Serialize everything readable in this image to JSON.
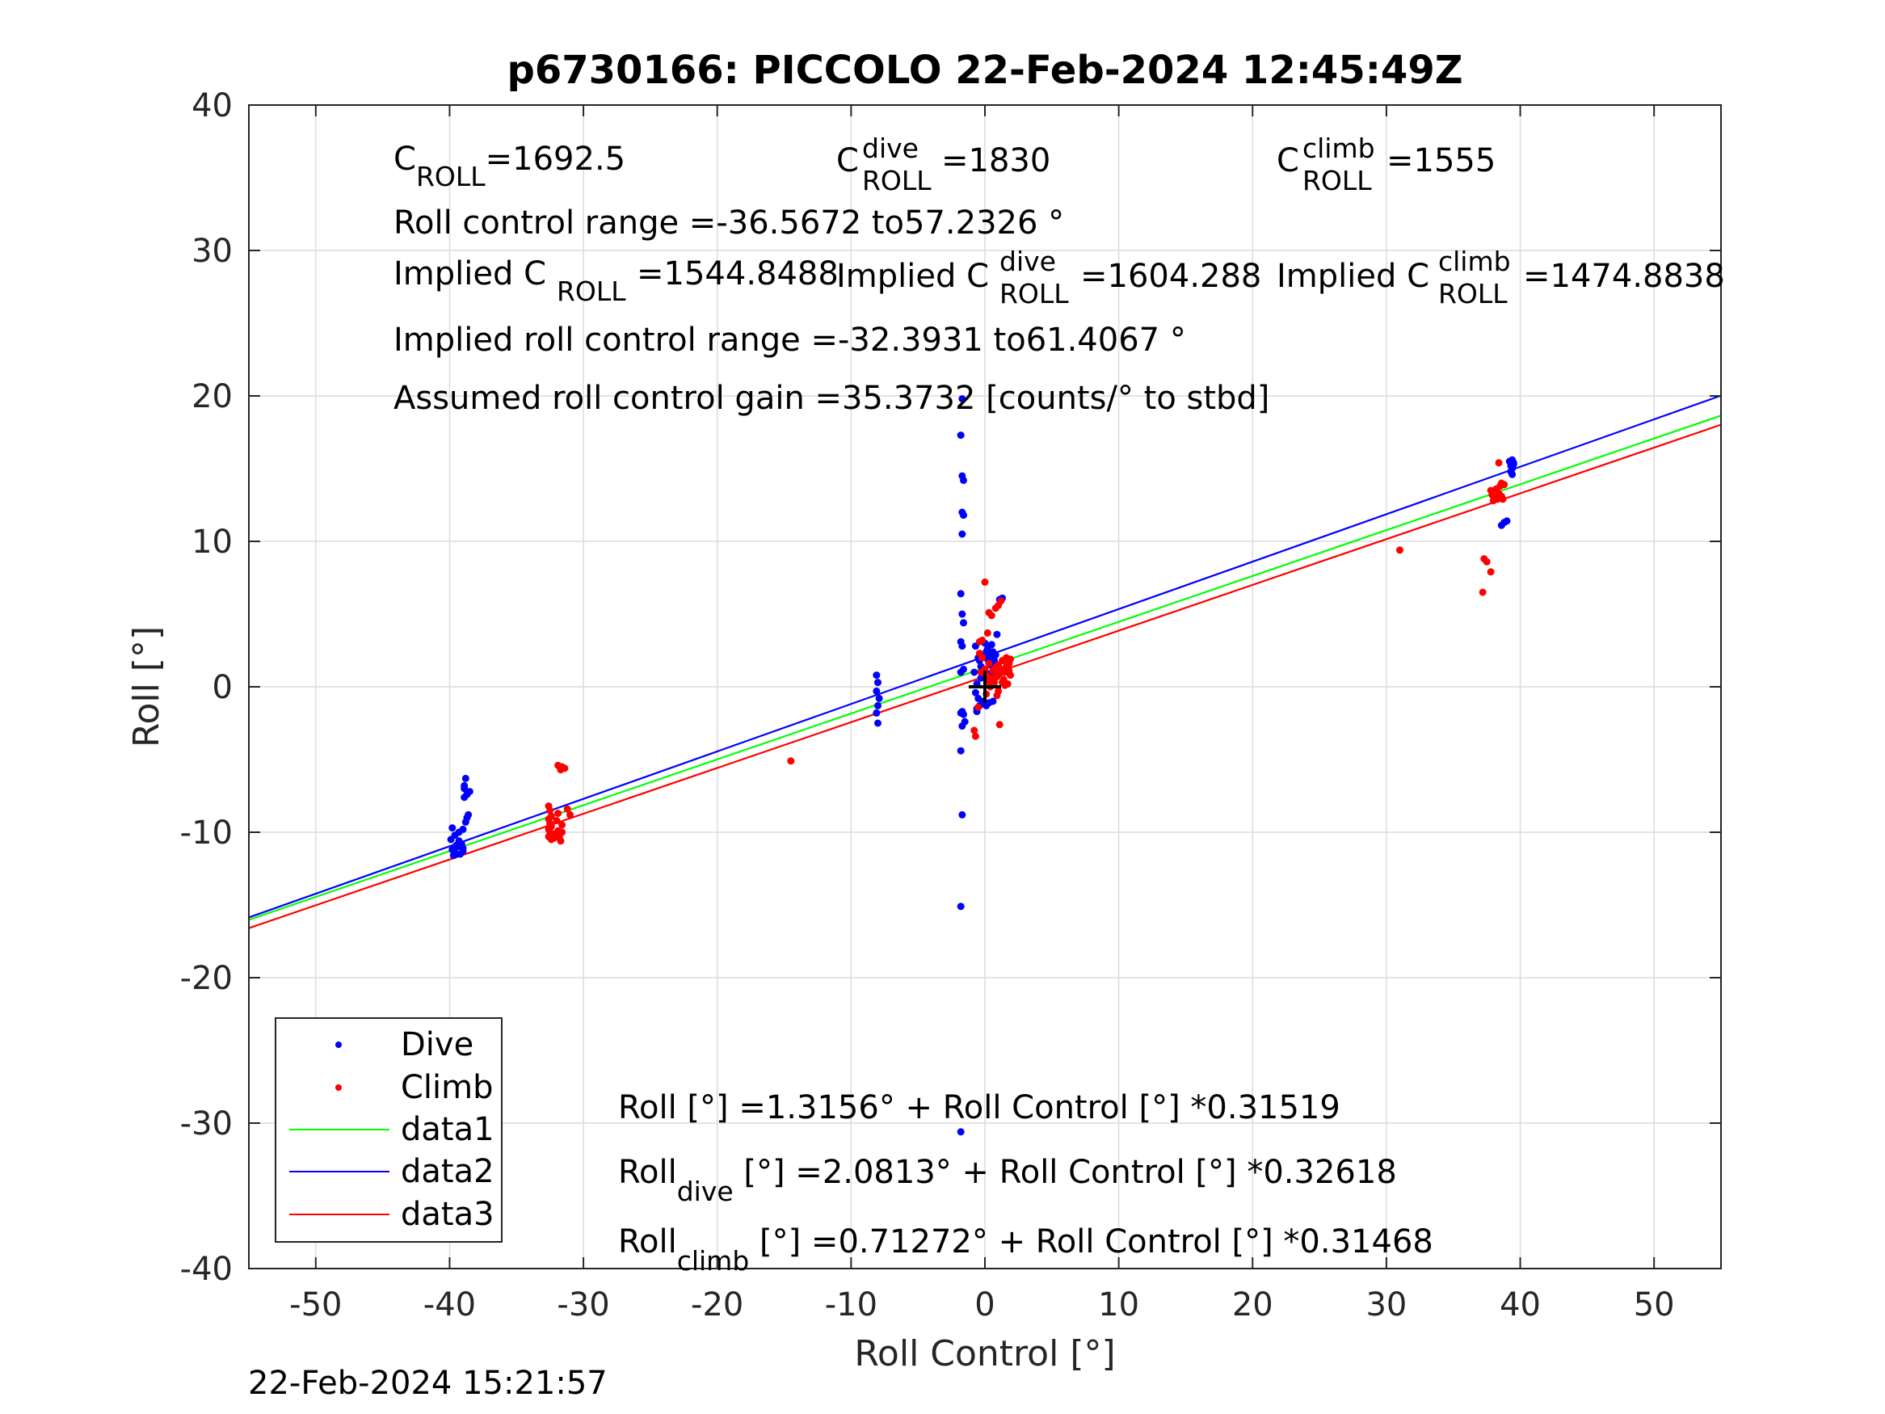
{
  "chart_data": {
    "type": "scatter",
    "title": "p6730166: PICCOLO 22-Feb-2024 12:45:49Z",
    "xlabel": "Roll Control [°]",
    "ylabel": "Roll [°]",
    "xlim": [
      -55,
      55
    ],
    "ylim": [
      -40,
      40
    ],
    "xticks": [
      -50,
      -40,
      -30,
      -20,
      -10,
      0,
      10,
      20,
      30,
      40,
      50
    ],
    "yticks": [
      -40,
      -30,
      -20,
      -10,
      0,
      10,
      20,
      30,
      40
    ],
    "grid": true,
    "legend_position": "bottom-left",
    "timestamp": "22-Feb-2024 15:21:57",
    "annotations": {
      "c_roll": {
        "base": "C",
        "sub": "ROLL",
        "value": "=1692.5"
      },
      "c_roll_dive": {
        "base": "C",
        "sup": "dive",
        "sub": "ROLL",
        "value": "=1830"
      },
      "c_roll_climb": {
        "base": "C",
        "sup": "climb",
        "sub": "ROLL",
        "value": "=1555"
      },
      "roll_control_range": "Roll control range =-36.5672 to57.2326 °",
      "implied_c_roll": {
        "prefix": "Implied C",
        "sub": "ROLL",
        "value": "=1544.8488"
      },
      "implied_c_roll_dive": {
        "prefix": "Implied C",
        "sup": "dive",
        "sub": "ROLL",
        "value": "=1604.288"
      },
      "implied_c_roll_climb": {
        "prefix": "Implied C",
        "sup": "climb",
        "sub": "ROLL",
        "value": "=1474.8838"
      },
      "implied_range": "Implied roll control range =-32.3931 to61.4067 °",
      "gain": "Assumed roll control gain =35.3732 [counts/° to stbd]",
      "fit_all": "Roll [°] =1.3156° + Roll Control [°] *0.31519",
      "fit_dive": {
        "prefix": "Roll",
        "sub": "dive",
        "value": " [°] =2.0813° + Roll Control [°] *0.32618"
      },
      "fit_climb": {
        "prefix": "Roll",
        "sub": "climb",
        "value": " [°] =0.71272° + Roll Control [°] *0.31468"
      }
    },
    "series": [
      {
        "name": "Dive",
        "kind": "points",
        "color": "#0000ff",
        "points": [
          [
            -39.8,
            -11.2
          ],
          [
            -39.6,
            -11.4
          ],
          [
            -39.5,
            -10.9
          ],
          [
            -39.4,
            -11.0
          ],
          [
            -39.3,
            -10.6
          ],
          [
            -39.6,
            -10.2
          ],
          [
            -39.8,
            -9.7
          ],
          [
            -39.2,
            -11.5
          ],
          [
            -39.0,
            -11.3
          ],
          [
            -39.3,
            -10.0
          ],
          [
            -39.7,
            -11.6
          ],
          [
            -39.1,
            -10.8
          ],
          [
            -39.5,
            -11.5
          ],
          [
            -39.0,
            -11.1
          ],
          [
            -39.9,
            -10.5
          ],
          [
            -38.8,
            -6.3
          ],
          [
            -38.9,
            -7.0
          ],
          [
            -38.7,
            -7.4
          ],
          [
            -38.9,
            -7.6
          ],
          [
            -38.6,
            -8.8
          ],
          [
            -38.8,
            -9.3
          ],
          [
            -38.5,
            -7.2
          ],
          [
            -39.0,
            -9.8
          ],
          [
            -38.9,
            -6.8
          ],
          [
            -38.7,
            -9.0
          ],
          [
            -8.1,
            0.8
          ],
          [
            -8.0,
            0.3
          ],
          [
            -8.1,
            -0.3
          ],
          [
            -7.9,
            -0.8
          ],
          [
            -8.0,
            -1.3
          ],
          [
            -8.1,
            -1.8
          ],
          [
            -8.0,
            -2.5
          ],
          [
            -1.7,
            19.8
          ],
          [
            -1.8,
            17.3
          ],
          [
            -1.7,
            14.5
          ],
          [
            -1.6,
            14.2
          ],
          [
            -1.7,
            12.0
          ],
          [
            -1.6,
            11.8
          ],
          [
            -1.7,
            10.5
          ],
          [
            -1.8,
            6.4
          ],
          [
            -1.7,
            5.0
          ],
          [
            -1.6,
            4.4
          ],
          [
            -1.8,
            3.1
          ],
          [
            -1.7,
            2.8
          ],
          [
            -1.6,
            1.2
          ],
          [
            -1.8,
            1.0
          ],
          [
            -1.7,
            -1.7
          ],
          [
            -1.6,
            -1.9
          ],
          [
            -1.8,
            -1.8
          ],
          [
            -1.5,
            -2.4
          ],
          [
            -1.7,
            -2.7
          ],
          [
            -1.8,
            -4.4
          ],
          [
            -1.7,
            -8.8
          ],
          [
            -1.8,
            -15.1
          ],
          [
            -1.8,
            -30.6
          ],
          [
            -0.8,
            1.0
          ],
          [
            -0.6,
            -1.5
          ],
          [
            -0.7,
            -0.4
          ],
          [
            -0.5,
            2.0
          ],
          [
            -0.4,
            -1.3
          ],
          [
            -0.6,
            0.2
          ],
          [
            -0.3,
            1.4
          ],
          [
            -0.5,
            -0.8
          ],
          [
            -0.7,
            2.8
          ],
          [
            -0.2,
            -1.0
          ],
          [
            -0.4,
            1.8
          ],
          [
            -0.3,
            0.6
          ],
          [
            -0.6,
            -1.7
          ],
          [
            0.0,
            2.1
          ],
          [
            0.1,
            2.4
          ],
          [
            0.2,
            1.9
          ],
          [
            0.3,
            2.2
          ],
          [
            0.2,
            2.6
          ],
          [
            0.4,
            1.5
          ],
          [
            0.5,
            2.0
          ],
          [
            0.6,
            2.4
          ],
          [
            0.7,
            1.8
          ],
          [
            0.3,
            -1.1
          ],
          [
            0.1,
            -1.3
          ],
          [
            0.0,
            3.0
          ],
          [
            0.4,
            0.9
          ],
          [
            0.6,
            -1.0
          ],
          [
            0.8,
            2.2
          ],
          [
            0.2,
            0.4
          ],
          [
            0.7,
            0.8
          ],
          [
            0.9,
            3.6
          ],
          [
            1.1,
            6.0
          ],
          [
            1.3,
            6.1
          ],
          [
            0.5,
            2.9
          ],
          [
            39.4,
            15.6
          ],
          [
            39.5,
            15.4
          ],
          [
            39.3,
            15.2
          ],
          [
            39.4,
            15.0
          ],
          [
            39.2,
            15.5
          ],
          [
            39.5,
            15.3
          ],
          [
            39.4,
            14.6
          ],
          [
            39.3,
            14.8
          ],
          [
            38.8,
            11.3
          ],
          [
            38.6,
            11.1
          ],
          [
            39.0,
            11.4
          ]
        ]
      },
      {
        "name": "Climb",
        "kind": "points",
        "color": "#ff0000",
        "points": [
          [
            -32.6,
            -8.2
          ],
          [
            -32.5,
            -8.5
          ],
          [
            -32.4,
            -8.9
          ],
          [
            -32.6,
            -9.1
          ],
          [
            -32.5,
            -9.4
          ],
          [
            -32.4,
            -9.6
          ],
          [
            -32.6,
            -9.8
          ],
          [
            -32.5,
            -10.0
          ],
          [
            -32.3,
            -10.2
          ],
          [
            -32.2,
            -10.4
          ],
          [
            -32.4,
            -10.5
          ],
          [
            -32.1,
            -10.1
          ],
          [
            -31.9,
            -9.9
          ],
          [
            -31.8,
            -10.3
          ],
          [
            -31.7,
            -10.6
          ],
          [
            -31.6,
            -9.5
          ],
          [
            -31.9,
            -8.7
          ],
          [
            -32.0,
            -9.2
          ],
          [
            -31.6,
            -10.0
          ],
          [
            -32.6,
            -10.3
          ],
          [
            -31.9,
            -5.4
          ],
          [
            -31.6,
            -5.5
          ],
          [
            -31.4,
            -5.6
          ],
          [
            -31.7,
            -5.7
          ],
          [
            -31.0,
            -8.8
          ],
          [
            -31.2,
            -8.4
          ],
          [
            -14.5,
            -5.1
          ],
          [
            -0.8,
            -3.0
          ],
          [
            -0.7,
            -3.4
          ],
          [
            -0.5,
            -1.4
          ],
          [
            -0.3,
            1.0
          ],
          [
            -0.4,
            2.3
          ],
          [
            -0.2,
            2.0
          ],
          [
            0.0,
            1.2
          ],
          [
            0.1,
            0.8
          ],
          [
            0.2,
            0.4
          ],
          [
            0.3,
            1.6
          ],
          [
            0.4,
            0.0
          ],
          [
            0.5,
            0.6
          ],
          [
            0.6,
            1.1
          ],
          [
            0.7,
            0.3
          ],
          [
            0.8,
            1.3
          ],
          [
            0.9,
            0.7
          ],
          [
            1.0,
            1.5
          ],
          [
            1.1,
            0.9
          ],
          [
            1.2,
            1.2
          ],
          [
            1.3,
            1.8
          ],
          [
            1.4,
            0.5
          ],
          [
            1.5,
            1.0
          ],
          [
            1.6,
            1.4
          ],
          [
            1.7,
            0.2
          ],
          [
            1.8,
            1.6
          ],
          [
            1.9,
            0.8
          ],
          [
            1.3,
            0.3
          ],
          [
            1.0,
            -0.3
          ],
          [
            0.9,
            -0.6
          ],
          [
            1.1,
            -2.6
          ],
          [
            0.0,
            7.2
          ],
          [
            0.3,
            5.1
          ],
          [
            0.8,
            5.4
          ],
          [
            1.0,
            5.6
          ],
          [
            1.2,
            5.9
          ],
          [
            0.5,
            4.9
          ],
          [
            -0.2,
            3.2
          ],
          [
            0.2,
            3.7
          ],
          [
            -0.4,
            3.1
          ],
          [
            0.1,
            -0.5
          ],
          [
            1.6,
            2.0
          ],
          [
            1.9,
            1.9
          ],
          [
            1.8,
            1.1
          ],
          [
            1.5,
            0.1
          ],
          [
            31.0,
            9.4
          ],
          [
            37.3,
            8.8
          ],
          [
            37.5,
            8.6
          ],
          [
            37.8,
            7.9
          ],
          [
            37.2,
            6.5
          ],
          [
            37.8,
            13.5
          ],
          [
            37.9,
            13.2
          ],
          [
            38.0,
            12.8
          ],
          [
            38.1,
            13.0
          ],
          [
            38.2,
            13.6
          ],
          [
            38.3,
            12.9
          ],
          [
            38.4,
            13.3
          ],
          [
            38.5,
            13.8
          ],
          [
            38.6,
            13.1
          ],
          [
            38.7,
            12.9
          ],
          [
            38.8,
            13.9
          ],
          [
            38.4,
            15.4
          ],
          [
            38.6,
            14.0
          ]
        ]
      },
      {
        "name": "data1",
        "kind": "line",
        "color": "#00ff00",
        "intercept": 1.3156,
        "slope": 0.31519
      },
      {
        "name": "data2",
        "kind": "line",
        "color": "#0000ff",
        "intercept": 2.0813,
        "slope": 0.32618
      },
      {
        "name": "data3",
        "kind": "line",
        "color": "#ff0000",
        "intercept": 0.71272,
        "slope": 0.31468
      }
    ],
    "marker": {
      "x": 0,
      "y": 0,
      "symbol": "+",
      "color": "#000000"
    }
  }
}
